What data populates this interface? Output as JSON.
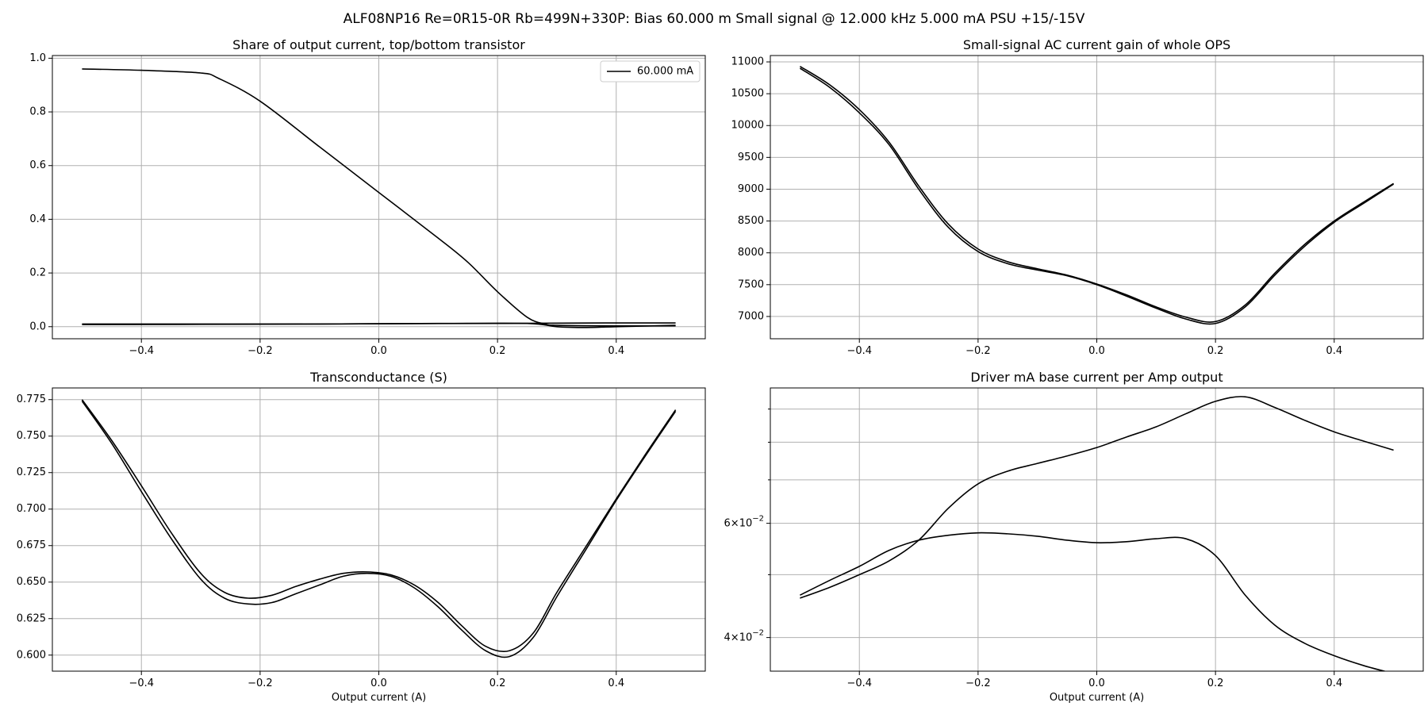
{
  "suptitle": "ALF08NP16 Re=0R15-0R Rb=499N+330P: Bias 60.000 m Small signal @ 12.000 kHz 5.000 mA PSU +15/-15V",
  "colors": {
    "line": "#000000",
    "grid": "#b0b0b0",
    "axes": "#000000",
    "background": "#ffffff"
  },
  "chart_data": [
    {
      "type": "line",
      "title": "Share of output current, top/bottom transistor",
      "xlabel": "",
      "ylabel": "",
      "xlim": [
        -0.55,
        0.55
      ],
      "ylim": [
        -0.045,
        1.01
      ],
      "xticks": [
        -0.4,
        -0.2,
        0.0,
        0.2,
        0.4
      ],
      "xtick_labels": [
        "−0.4",
        "−0.2",
        "0.0",
        "0.2",
        "0.4"
      ],
      "yticks": [
        0.0,
        0.2,
        0.4,
        0.6,
        0.8,
        1.0
      ],
      "ytick_labels": [
        "0.0",
        "0.2",
        "0.4",
        "0.6",
        "0.8",
        "1.0"
      ],
      "grid": true,
      "legend": {
        "position": "upper-right",
        "entries": [
          "60.000 mA"
        ]
      },
      "series": [
        {
          "name": "60.000 mA",
          "x": [
            -0.5,
            -0.4,
            -0.3,
            -0.27,
            -0.2,
            -0.1,
            0.0,
            0.1,
            0.15,
            0.2,
            0.25,
            0.28,
            0.3,
            0.4,
            0.5
          ],
          "y": [
            0.96,
            0.955,
            0.945,
            0.925,
            0.84,
            0.67,
            0.5,
            0.33,
            0.24,
            0.13,
            0.035,
            0.01,
            0.005,
            0.003,
            0.003
          ]
        },
        {
          "x": [
            -0.5,
            -0.3,
            -0.1,
            0.1,
            0.25,
            0.3,
            0.35,
            0.4,
            0.5
          ],
          "y": [
            0.01,
            0.01,
            0.01,
            0.012,
            0.012,
            0.0,
            -0.003,
            0.0,
            0.005
          ]
        },
        {
          "x": [
            -0.5,
            -0.2,
            0.0,
            0.2,
            0.4,
            0.5
          ],
          "y": [
            0.008,
            0.009,
            0.011,
            0.012,
            0.014,
            0.014
          ]
        }
      ]
    },
    {
      "type": "line",
      "title": "Small-signal AC current gain of whole OPS",
      "xlabel": "",
      "ylabel": "",
      "xlim": [
        -0.55,
        0.55
      ],
      "ylim": [
        6650,
        11100
      ],
      "xticks": [
        -0.4,
        -0.2,
        0.0,
        0.2,
        0.4
      ],
      "xtick_labels": [
        "−0.4",
        "−0.2",
        "0.0",
        "0.2",
        "0.4"
      ],
      "yticks": [
        7000,
        7500,
        8000,
        8500,
        9000,
        9500,
        10000,
        10500,
        11000
      ],
      "ytick_labels": [
        "7000",
        "7500",
        "8000",
        "8500",
        "9000",
        "9500",
        "10000",
        "10500",
        "11000"
      ],
      "grid": true,
      "series": [
        {
          "x": [
            -0.5,
            -0.45,
            -0.4,
            -0.35,
            -0.3,
            -0.25,
            -0.2,
            -0.15,
            -0.1,
            -0.05,
            0.0,
            0.05,
            0.1,
            0.15,
            0.2,
            0.25,
            0.3,
            0.35,
            0.4,
            0.45,
            0.5
          ],
          "y": [
            10900,
            10600,
            10200,
            9700,
            9000,
            8400,
            8020,
            7830,
            7730,
            7640,
            7500,
            7320,
            7130,
            6960,
            6890,
            7150,
            7650,
            8100,
            8480,
            8780,
            9080
          ]
        },
        {
          "x": [
            -0.5,
            -0.45,
            -0.4,
            -0.35,
            -0.3,
            -0.25,
            -0.2,
            -0.15,
            -0.1,
            -0.05,
            0.0,
            0.05,
            0.1,
            0.15,
            0.2,
            0.25,
            0.3,
            0.35,
            0.4,
            0.45,
            0.5
          ],
          "y": [
            10930,
            10640,
            10250,
            9740,
            9050,
            8450,
            8060,
            7860,
            7750,
            7650,
            7510,
            7340,
            7150,
            6990,
            6920,
            7180,
            7680,
            8130,
            8500,
            8800,
            9090
          ]
        }
      ]
    },
    {
      "type": "line",
      "title": "Transconductance (S)",
      "xlabel": "Output current (A)",
      "ylabel": "",
      "xlim": [
        -0.55,
        0.55
      ],
      "ylim": [
        0.589,
        0.783
      ],
      "xticks": [
        -0.4,
        -0.2,
        0.0,
        0.2,
        0.4
      ],
      "xtick_labels": [
        "−0.4",
        "−0.2",
        "0.0",
        "0.2",
        "0.4"
      ],
      "yticks": [
        0.6,
        0.625,
        0.65,
        0.675,
        0.7,
        0.725,
        0.75,
        0.775
      ],
      "ytick_labels": [
        "0.600",
        "0.625",
        "0.650",
        "0.675",
        "0.700",
        "0.725",
        "0.750",
        "0.775"
      ],
      "grid": true,
      "series": [
        {
          "x": [
            -0.5,
            -0.45,
            -0.4,
            -0.35,
            -0.3,
            -0.26,
            -0.22,
            -0.18,
            -0.14,
            -0.1,
            -0.06,
            -0.02,
            0.02,
            0.06,
            0.1,
            0.14,
            0.18,
            0.22,
            0.26,
            0.3,
            0.35,
            0.4,
            0.45,
            0.5
          ],
          "y": [
            0.774,
            0.745,
            0.712,
            0.68,
            0.652,
            0.639,
            0.635,
            0.636,
            0.642,
            0.648,
            0.654,
            0.656,
            0.654,
            0.646,
            0.633,
            0.617,
            0.603,
            0.599,
            0.612,
            0.64,
            0.673,
            0.706,
            0.737,
            0.767
          ]
        },
        {
          "x": [
            -0.5,
            -0.45,
            -0.4,
            -0.35,
            -0.3,
            -0.26,
            -0.22,
            -0.18,
            -0.14,
            -0.1,
            -0.06,
            -0.02,
            0.02,
            0.06,
            0.1,
            0.14,
            0.18,
            0.22,
            0.26,
            0.3,
            0.35,
            0.4,
            0.45,
            0.5
          ],
          "y": [
            0.775,
            0.747,
            0.716,
            0.684,
            0.656,
            0.643,
            0.639,
            0.641,
            0.647,
            0.652,
            0.656,
            0.657,
            0.655,
            0.648,
            0.636,
            0.62,
            0.606,
            0.603,
            0.615,
            0.643,
            0.675,
            0.707,
            0.738,
            0.768
          ]
        }
      ]
    },
    {
      "type": "line",
      "title": "Driver mA base current per Amp output",
      "xlabel": "Output current (A)",
      "ylabel": "",
      "yscale": "log",
      "xlim": [
        -0.55,
        0.55
      ],
      "ylim": [
        0.0355,
        0.097
      ],
      "xticks": [
        -0.4,
        -0.2,
        0.0,
        0.2,
        0.4
      ],
      "xtick_labels": [
        "−0.4",
        "−0.2",
        "0.0",
        "0.2",
        "0.4"
      ],
      "yticks": [
        0.04,
        0.06
      ],
      "ytick_labels": [
        "4 × 10⁻²",
        "6 × 10⁻²"
      ],
      "yminor_ticks": [
        0.05,
        0.07,
        0.08,
        0.09
      ],
      "grid": true,
      "series": [
        {
          "x": [
            -0.5,
            -0.45,
            -0.4,
            -0.35,
            -0.3,
            -0.25,
            -0.2,
            -0.15,
            -0.1,
            -0.05,
            0.0,
            0.05,
            0.1,
            0.15,
            0.2,
            0.25,
            0.3,
            0.35,
            0.4,
            0.45,
            0.5
          ],
          "y": [
            0.046,
            0.0478,
            0.05,
            0.0525,
            0.0565,
            0.0633,
            0.069,
            0.0722,
            0.0742,
            0.0762,
            0.0785,
            0.0815,
            0.0845,
            0.0885,
            0.0925,
            0.094,
            0.0905,
            0.0865,
            0.083,
            0.0803,
            0.0778
          ]
        },
        {
          "x": [
            -0.5,
            -0.45,
            -0.4,
            -0.35,
            -0.3,
            -0.25,
            -0.2,
            -0.15,
            -0.1,
            -0.05,
            0.0,
            0.05,
            0.1,
            0.15,
            0.2,
            0.25,
            0.3,
            0.35,
            0.4,
            0.45,
            0.5
          ],
          "y": [
            0.0465,
            0.049,
            0.0515,
            0.0545,
            0.0565,
            0.0575,
            0.058,
            0.0578,
            0.0573,
            0.0565,
            0.056,
            0.0562,
            0.0568,
            0.0568,
            0.0535,
            0.0465,
            0.0418,
            0.0392,
            0.0375,
            0.0362,
            0.0352
          ]
        }
      ]
    }
  ]
}
